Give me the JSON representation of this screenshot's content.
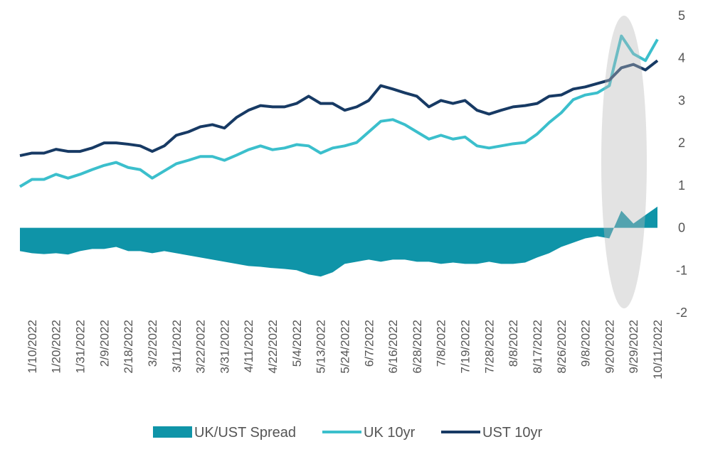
{
  "chart_data": {
    "type": "area-line",
    "categories": [
      null,
      "1/10/2022",
      null,
      "1/20/2022",
      null,
      "1/31/2022",
      null,
      "2/9/2022",
      null,
      "2/18/2022",
      null,
      "3/2/2022",
      null,
      "3/11/2022",
      null,
      "3/22/2022",
      null,
      "3/31/2022",
      null,
      "4/11/2022",
      null,
      "4/22/2022",
      null,
      "5/4/2022",
      null,
      "5/13/2022",
      null,
      "5/24/2022",
      null,
      "6/7/2022",
      null,
      "6/16/2022",
      null,
      "6/28/2022",
      null,
      "7/8/2022",
      null,
      "7/19/2022",
      null,
      "7/28/2022",
      null,
      "8/8/2022",
      null,
      "8/17/2022",
      null,
      "8/26/2022",
      null,
      "9/8/2022",
      null,
      "9/20/2022",
      null,
      "9/29/2022",
      null,
      "10/11/2022"
    ],
    "series": [
      {
        "name": "UK/UST Spread",
        "kind": "area",
        "color": "#0f94a8",
        "values": [
          -0.55,
          -0.6,
          -0.62,
          -0.6,
          -0.63,
          -0.55,
          -0.5,
          -0.5,
          -0.45,
          -0.55,
          -0.55,
          -0.6,
          -0.55,
          -0.6,
          -0.65,
          -0.7,
          -0.75,
          -0.8,
          -0.85,
          -0.9,
          -0.92,
          -0.95,
          -0.97,
          -1.0,
          -1.1,
          -1.15,
          -1.05,
          -0.85,
          -0.8,
          -0.75,
          -0.8,
          -0.75,
          -0.75,
          -0.8,
          -0.8,
          -0.85,
          -0.82,
          -0.85,
          -0.85,
          -0.8,
          -0.85,
          -0.85,
          -0.82,
          -0.7,
          -0.6,
          -0.45,
          -0.35,
          -0.25,
          -0.2,
          -0.25,
          0.4,
          0.1,
          0.3,
          0.5
        ]
      },
      {
        "name": "UK 10yr",
        "kind": "line",
        "color": "#3bbfcc",
        "values": [
          0.97,
          1.14,
          1.14,
          1.26,
          1.17,
          1.26,
          1.37,
          1.47,
          1.54,
          1.42,
          1.37,
          1.17,
          1.34,
          1.51,
          1.59,
          1.68,
          1.68,
          1.59,
          1.71,
          1.84,
          1.93,
          1.84,
          1.88,
          1.96,
          1.93,
          1.76,
          1.88,
          1.93,
          2.01,
          2.26,
          2.51,
          2.55,
          2.43,
          2.26,
          2.09,
          2.18,
          2.09,
          2.14,
          1.93,
          1.88,
          1.93,
          1.98,
          2.01,
          2.21,
          2.48,
          2.71,
          3.02,
          3.13,
          3.18,
          3.35,
          4.52,
          4.1,
          3.94,
          4.44
        ]
      },
      {
        "name": "UST 10yr",
        "kind": "line",
        "color": "#173a64",
        "values": [
          1.7,
          1.76,
          1.76,
          1.85,
          1.8,
          1.8,
          1.88,
          2.0,
          2.0,
          1.97,
          1.93,
          1.8,
          1.93,
          2.18,
          2.26,
          2.38,
          2.43,
          2.35,
          2.6,
          2.77,
          2.88,
          2.85,
          2.85,
          2.93,
          3.1,
          2.93,
          2.93,
          2.77,
          2.85,
          3.0,
          3.35,
          3.27,
          3.18,
          3.1,
          2.85,
          3.0,
          2.93,
          3.0,
          2.77,
          2.68,
          2.77,
          2.85,
          2.88,
          2.93,
          3.1,
          3.13,
          3.27,
          3.32,
          3.4,
          3.48,
          3.77,
          3.85,
          3.72,
          3.94
        ]
      }
    ],
    "ylim": [
      -2,
      5
    ],
    "yticks": [
      -2,
      -1,
      0,
      1,
      2,
      3,
      4,
      5
    ],
    "grid": true,
    "legend": "bottom"
  }
}
